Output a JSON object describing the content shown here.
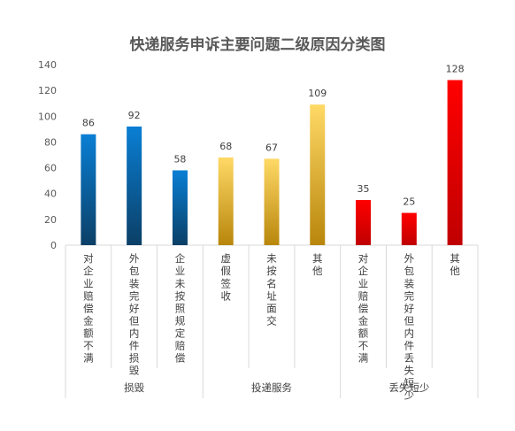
{
  "chart_data": {
    "type": "bar",
    "title": "快递服务申诉主要问题二级原因分类图",
    "ylim": [
      0,
      140
    ],
    "yticks": [
      0,
      20,
      40,
      60,
      80,
      100,
      120,
      140
    ],
    "grid": false,
    "legend": "none",
    "groups": [
      {
        "name": "损毁",
        "categories": [
          "对企业赔偿金额不满",
          "外包装完好但内件损毁",
          "企业未按照规定赔偿"
        ],
        "values": [
          86,
          92,
          58
        ],
        "color_top": "#0a7fd4",
        "color_bottom": "#0b3f66"
      },
      {
        "name": "投递服务",
        "categories": [
          "虚假签收",
          "未按名址面交",
          "其他"
        ],
        "values": [
          68,
          67,
          109
        ],
        "color_top": "#ffd966",
        "color_bottom": "#b8860b"
      },
      {
        "name": "丢失短少",
        "categories": [
          "对企业赔偿金额不满",
          "外包装完好但内件丢失短少",
          "其他"
        ],
        "values": [
          35,
          25,
          128
        ],
        "color_top": "#ff0000",
        "color_bottom": "#c00000"
      }
    ]
  }
}
